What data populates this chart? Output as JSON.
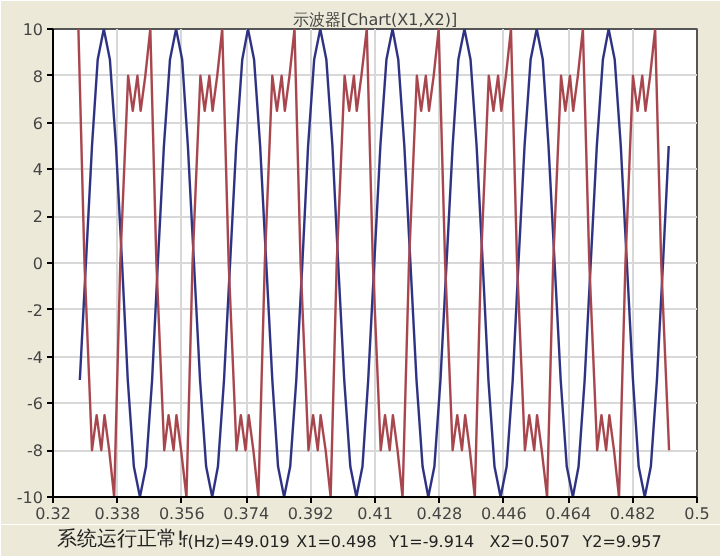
{
  "chart_data": {
    "type": "line",
    "title": "示波器[Chart(X1,X2)]",
    "xlim": [
      0.32,
      0.5
    ],
    "xticks": [
      0.32,
      0.338,
      0.356,
      0.374,
      0.392,
      0.41,
      0.428,
      0.446,
      0.464,
      0.482,
      0.5
    ],
    "ylim": [
      -10,
      10
    ],
    "yticks": [
      -10,
      -8,
      -6,
      -4,
      -2,
      0,
      2,
      4,
      6,
      8,
      10
    ],
    "grid": true,
    "marker": "none",
    "line_style": "solid",
    "annotations": [
      "系统运行正常!",
      "f(Hz)=49.019",
      "X1=0.498",
      "Y1=-9.914",
      "X2=0.507",
      "Y2=9.957"
    ],
    "series": [
      {
        "color": "#2e3282",
        "x": [
          0.3275,
          0.3292,
          0.3309,
          0.3325,
          0.3342,
          0.3359,
          0.3376,
          0.3393,
          0.3409,
          0.3426,
          0.3443,
          0.346,
          0.3477,
          0.3493,
          0.351,
          0.3527,
          0.3544,
          0.3561,
          0.3577,
          0.3594,
          0.3611,
          0.3628,
          0.3645,
          0.3661,
          0.3678,
          0.3695,
          0.3712,
          0.3729,
          0.3745,
          0.3762,
          0.3779,
          0.3796,
          0.3813,
          0.3829,
          0.3846,
          0.3863,
          0.388,
          0.3897,
          0.3913,
          0.393,
          0.3947,
          0.3964,
          0.3981,
          0.3997,
          0.4014,
          0.4031,
          0.4048,
          0.4065,
          0.4081,
          0.4098,
          0.4115,
          0.4132,
          0.4149,
          0.4165,
          0.4182,
          0.4199,
          0.4216,
          0.4233,
          0.4249,
          0.4266,
          0.4283,
          0.43,
          0.4317,
          0.4333,
          0.435,
          0.4367,
          0.4384,
          0.4401,
          0.4417,
          0.4434,
          0.4451,
          0.4468,
          0.4485,
          0.4501,
          0.4518,
          0.4535,
          0.4552,
          0.4569,
          0.4585,
          0.4602,
          0.4619,
          0.4636,
          0.4653,
          0.4669,
          0.4686,
          0.4703,
          0.472,
          0.4737,
          0.4753,
          0.477,
          0.4787,
          0.4804,
          0.4821,
          0.4837,
          0.4854,
          0.4871,
          0.4888,
          0.4905,
          0.4921
        ],
        "values": [
          -5,
          0,
          5,
          8.7,
          10,
          8.7,
          5,
          0,
          -5,
          -8.7,
          -10,
          -8.7,
          -5,
          0,
          5,
          8.7,
          10,
          8.7,
          5,
          0,
          -5,
          -8.7,
          -10,
          -8.7,
          -5,
          0,
          5,
          8.7,
          10,
          8.7,
          5,
          0,
          -5,
          -8.7,
          -10,
          -8.7,
          -5,
          0,
          5,
          8.7,
          10,
          8.7,
          5,
          0,
          -5,
          -8.7,
          -10,
          -8.7,
          -5,
          0,
          5,
          8.7,
          10,
          8.7,
          5,
          0,
          -5,
          -8.7,
          -10,
          -8.7,
          -5,
          0,
          5,
          8.7,
          10,
          8.7,
          5,
          0,
          -5,
          -8.7,
          -10,
          -8.7,
          -5,
          0,
          5,
          8.7,
          10,
          8.7,
          5,
          0,
          -5,
          -8.7,
          -10,
          -8.7,
          -5,
          0,
          5,
          8.7,
          10,
          8.7,
          5,
          0,
          -5,
          -8.7,
          -10,
          -8.7,
          -5,
          0,
          5
        ]
      },
      {
        "color": "#a8464e",
        "x": [
          0.3271,
          0.3288,
          0.3309,
          0.3322,
          0.3335,
          0.3344,
          0.3357,
          0.3371,
          0.3388,
          0.341,
          0.3423,
          0.3436,
          0.3445,
          0.3458,
          0.3472,
          0.3489,
          0.3511,
          0.3523,
          0.3537,
          0.3545,
          0.3558,
          0.3573,
          0.359,
          0.3612,
          0.3624,
          0.3637,
          0.3646,
          0.3659,
          0.3673,
          0.3691,
          0.3713,
          0.3725,
          0.3738,
          0.3747,
          0.376,
          0.3774,
          0.3792,
          0.3813,
          0.3826,
          0.3839,
          0.3848,
          0.3861,
          0.3875,
          0.3892,
          0.3914,
          0.3927,
          0.394,
          0.3948,
          0.3962,
          0.3976,
          0.3993,
          0.4015,
          0.4028,
          0.4041,
          0.4049,
          0.4062,
          0.4077,
          0.4094,
          0.4116,
          0.4128,
          0.4141,
          0.415,
          0.4163,
          0.4177,
          0.4195,
          0.4217,
          0.4229,
          0.4242,
          0.4251,
          0.4264,
          0.4278,
          0.4296,
          0.4317,
          0.433,
          0.4343,
          0.4352,
          0.4365,
          0.4379,
          0.4396,
          0.4418,
          0.4431,
          0.4444,
          0.4453,
          0.4466,
          0.448,
          0.4497,
          0.4519,
          0.4531,
          0.4545,
          0.4553,
          0.4566,
          0.4581,
          0.4598,
          0.462,
          0.4632,
          0.4645,
          0.4654,
          0.4667,
          0.4681,
          0.4699,
          0.4721,
          0.4733,
          0.4746,
          0.4755,
          0.4768,
          0.4782,
          0.48,
          0.4821,
          0.4834,
          0.4847,
          0.4856,
          0.4869,
          0.4883,
          0.49,
          0.4922
        ],
        "values": [
          10,
          0,
          -8,
          -6.5,
          -8,
          -6.5,
          -8,
          -10,
          0,
          8,
          6.5,
          8,
          6.5,
          8,
          10,
          0,
          -8,
          -6.5,
          -8,
          -6.5,
          -8,
          -10,
          0,
          8,
          6.5,
          8,
          6.5,
          8,
          10,
          0,
          -8,
          -6.5,
          -8,
          -6.5,
          -8,
          -10,
          0,
          8,
          6.5,
          8,
          6.5,
          8,
          10,
          0,
          -8,
          -6.5,
          -8,
          -6.5,
          -8,
          -10,
          0,
          8,
          6.5,
          8,
          6.5,
          8,
          10,
          0,
          -8,
          -6.5,
          -8,
          -6.5,
          -8,
          -10,
          0,
          8,
          6.5,
          8,
          6.5,
          8,
          10,
          0,
          -8,
          -6.5,
          -8,
          -6.5,
          -8,
          -10,
          0,
          8,
          6.5,
          8,
          6.5,
          8,
          10,
          0,
          -8,
          -6.5,
          -8,
          -6.5,
          -8,
          -10,
          0,
          8,
          6.5,
          8,
          6.5,
          8,
          10,
          0,
          -8,
          -6.5,
          -8,
          -6.5,
          -8,
          -10,
          0,
          8,
          6.5,
          8,
          6.5,
          8,
          10,
          0,
          -8
        ]
      }
    ]
  }
}
